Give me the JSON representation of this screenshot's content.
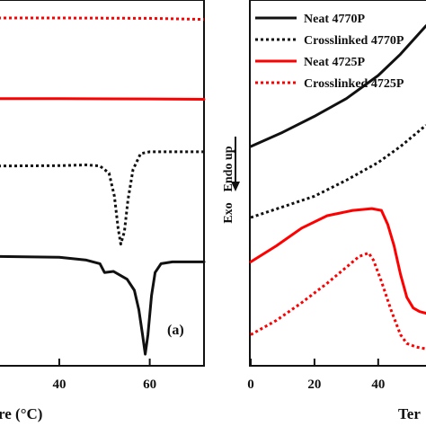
{
  "chart_data": [
    {
      "type": "line",
      "panel_label": "(a)",
      "xlabel": "re (°C)",
      "xticks": [
        40,
        60
      ],
      "xlim": [
        26.5,
        72
      ],
      "ylim": [
        0,
        1
      ],
      "grid": false,
      "legend": null,
      "series": [
        {
          "color": "#ff0000",
          "dash": "dotted",
          "points": [
            [
              26.5,
              0.962
            ],
            [
              40,
              0.962
            ],
            [
              60,
              0.961
            ],
            [
              72,
              0.958
            ]
          ]
        },
        {
          "color": "#ff0000",
          "dash": "solid",
          "points": [
            [
              26.5,
              0.735
            ],
            [
              40,
              0.735
            ],
            [
              60,
              0.734
            ],
            [
              72,
              0.733
            ]
          ]
        },
        {
          "color": "#111111",
          "dash": "dotted",
          "points": [
            [
              26.5,
              0.545
            ],
            [
              40,
              0.546
            ],
            [
              46,
              0.548
            ],
            [
              49,
              0.545
            ],
            [
              51,
              0.525
            ],
            [
              52.2,
              0.46
            ],
            [
              53,
              0.37
            ],
            [
              53.6,
              0.325
            ],
            [
              54.4,
              0.36
            ],
            [
              55.2,
              0.45
            ],
            [
              56.3,
              0.535
            ],
            [
              58,
              0.58
            ],
            [
              60,
              0.585
            ],
            [
              72,
              0.585
            ]
          ]
        },
        {
          "color": "#111111",
          "dash": "solid",
          "points": [
            [
              26.5,
              0.29
            ],
            [
              40,
              0.288
            ],
            [
              46,
              0.28
            ],
            [
              49,
              0.27
            ],
            [
              50,
              0.245
            ],
            [
              52,
              0.248
            ],
            [
              55,
              0.226
            ],
            [
              56.6,
              0.195
            ],
            [
              57.6,
              0.14
            ],
            [
              58.4,
              0.07
            ],
            [
              59,
              0.015
            ],
            [
              59.6,
              0.07
            ],
            [
              60.4,
              0.18
            ],
            [
              61.2,
              0.245
            ],
            [
              62.5,
              0.27
            ],
            [
              65,
              0.275
            ],
            [
              72,
              0.275
            ]
          ]
        }
      ]
    },
    {
      "type": "line",
      "xlabel": "Ter",
      "xticks": [
        0,
        20,
        40
      ],
      "xlim": [
        0,
        55
      ],
      "ylim": [
        0,
        1
      ],
      "grid": false,
      "ylabel": "Endo up",
      "ylabel_secondary": "Exo",
      "legend": "top-left",
      "series": [
        {
          "name": "Neat 4770P",
          "color": "#111111",
          "dash": "solid",
          "points": [
            [
              0,
              0.6
            ],
            [
              10,
              0.64
            ],
            [
              20,
              0.685
            ],
            [
              30,
              0.735
            ],
            [
              40,
              0.8
            ],
            [
              47,
              0.86
            ],
            [
              55,
              0.94
            ]
          ]
        },
        {
          "name": "Crosslinked 4770P",
          "color": "#111111",
          "dash": "dotted",
          "points": [
            [
              0,
              0.4
            ],
            [
              10,
              0.43
            ],
            [
              20,
              0.46
            ],
            [
              30,
              0.505
            ],
            [
              40,
              0.555
            ],
            [
              47,
              0.6
            ],
            [
              55,
              0.66
            ]
          ]
        },
        {
          "name": "Neat 4725P",
          "color": "#ff0000",
          "dash": "solid",
          "points": [
            [
              0,
              0.275
            ],
            [
              8,
              0.32
            ],
            [
              16,
              0.37
            ],
            [
              24,
              0.405
            ],
            [
              32,
              0.42
            ],
            [
              38,
              0.425
            ],
            [
              41,
              0.42
            ],
            [
              43,
              0.38
            ],
            [
              45,
              0.32
            ],
            [
              47,
              0.24
            ],
            [
              49,
              0.175
            ],
            [
              51,
              0.145
            ],
            [
              53,
              0.135
            ],
            [
              55,
              0.13
            ]
          ]
        },
        {
          "name": "Crosslinked 4725P",
          "color": "#ff0000",
          "dash": "dotted",
          "points": [
            [
              0,
              0.07
            ],
            [
              8,
              0.11
            ],
            [
              16,
              0.16
            ],
            [
              24,
              0.215
            ],
            [
              30,
              0.26
            ],
            [
              34,
              0.29
            ],
            [
              37,
              0.3
            ],
            [
              38.5,
              0.28
            ],
            [
              41,
              0.22
            ],
            [
              44,
              0.14
            ],
            [
              47,
              0.07
            ],
            [
              49,
              0.045
            ],
            [
              52,
              0.035
            ],
            [
              55,
              0.03
            ]
          ]
        }
      ]
    }
  ]
}
